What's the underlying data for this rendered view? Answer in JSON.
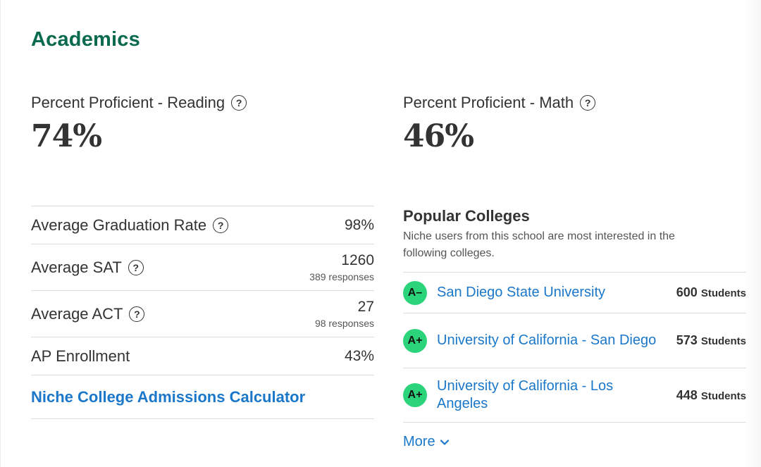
{
  "section": {
    "title": "Academics"
  },
  "reading": {
    "label": "Percent Proficient - Reading",
    "value": "74%"
  },
  "math": {
    "label": "Percent Proficient - Math",
    "value": "46%"
  },
  "help_glyph": "?",
  "facts": [
    {
      "label": "Average Graduation Rate",
      "value": "98%",
      "sub": "",
      "has_help": true
    },
    {
      "label": "Average SAT",
      "value": "1260",
      "sub": "389 responses",
      "has_help": true
    },
    {
      "label": "Average ACT",
      "value": "27",
      "sub": "98 responses",
      "has_help": true
    },
    {
      "label": "AP Enrollment",
      "value": "43%",
      "sub": "",
      "has_help": false
    }
  ],
  "calculator_link": "Niche College Admissions Calculator",
  "colleges": {
    "title": "Popular Colleges",
    "description": "Niche users from this school are most interested in the following colleges.",
    "items": [
      {
        "grade": "A–",
        "name": "San Diego State University",
        "count": "600",
        "unit": "Students"
      },
      {
        "grade": "A+",
        "name": "University of California - San Diego",
        "count": "573",
        "unit": "Students"
      },
      {
        "grade": "A+",
        "name": "University of California - Los Angeles",
        "count": "448",
        "unit": "Students"
      }
    ],
    "more_label": "More"
  },
  "colors": {
    "brand_green": "#0a6a4d",
    "link_blue": "#1a77c9",
    "grade_green": "#2bd47a"
  },
  "icons": {
    "help": "question-circle-icon",
    "more": "chevron-down-icon"
  }
}
